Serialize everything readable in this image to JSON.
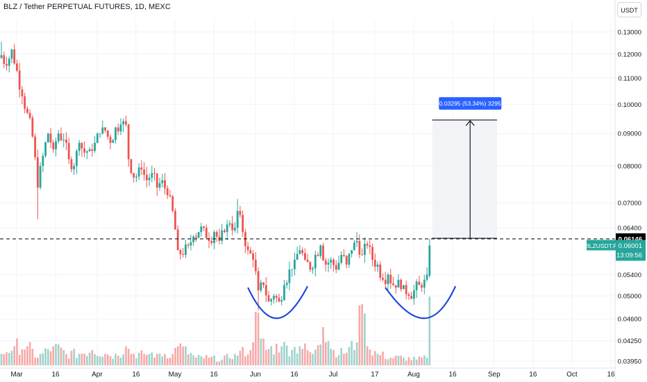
{
  "header": {
    "title": "BLZ / Tether PERPETUAL FUTURES, 1D, MEXC",
    "currency": "USDT"
  },
  "colors": {
    "up": "#26a69a",
    "down": "#ef5350",
    "vol_up": "#9fd3cc",
    "vol_down": "#f7a9a7",
    "drawing": "#1e48d8",
    "label_blue": "#2962ff",
    "grid": "#f0f3fa"
  },
  "chart_data": {
    "type": "candlestick",
    "symbol": "BLZUSDT.P",
    "y_axis": {
      "scale": "log",
      "range": [
        0.0385,
        0.136
      ],
      "ticks": [
        "0.13000",
        "0.12000",
        "0.11000",
        "0.10000",
        "0.09000",
        "0.08000",
        "0.07000",
        "0.06400",
        "0.05400",
        "0.05000",
        "0.04600",
        "0.04250",
        "0.03950"
      ]
    },
    "x_axis": {
      "ticks": [
        "Mar",
        "16",
        "Apr",
        "16",
        "May",
        "16",
        "Jun",
        "16",
        "Jul",
        "17",
        "Aug",
        "16",
        "Sep",
        "16",
        "Oct",
        "16"
      ],
      "start_date": "2024-03-01",
      "tick_days": [
        0,
        15,
        31,
        46,
        61,
        76,
        92,
        107,
        122,
        138,
        153,
        168,
        184,
        199,
        214,
        229
      ]
    },
    "ohlc_anchors": [
      {
        "day": 0,
        "close": 0.1195,
        "high": 0.1255
      },
      {
        "day": 2,
        "close": 0.115
      },
      {
        "day": 4,
        "close": 0.122
      },
      {
        "day": 6,
        "close": 0.113
      },
      {
        "day": 8,
        "close": 0.103
      },
      {
        "day": 10,
        "close": 0.097
      },
      {
        "day": 12,
        "close": 0.089
      },
      {
        "day": 14,
        "close": 0.074,
        "low": 0.066
      },
      {
        "day": 16,
        "close": 0.083
      },
      {
        "day": 18,
        "close": 0.09
      },
      {
        "day": 20,
        "close": 0.085
      },
      {
        "day": 22,
        "close": 0.09
      },
      {
        "day": 24,
        "close": 0.088
      },
      {
        "day": 26,
        "close": 0.082
      },
      {
        "day": 28,
        "close": 0.08
      },
      {
        "day": 30,
        "close": 0.087
      },
      {
        "day": 32,
        "close": 0.084
      },
      {
        "day": 34,
        "close": 0.085
      },
      {
        "day": 36,
        "close": 0.087
      },
      {
        "day": 38,
        "close": 0.09
      },
      {
        "day": 40,
        "close": 0.091
      },
      {
        "day": 42,
        "close": 0.087
      },
      {
        "day": 44,
        "close": 0.092
      },
      {
        "day": 46,
        "close": 0.093
      },
      {
        "day": 48,
        "close": 0.093,
        "high": 0.096
      },
      {
        "day": 49,
        "close": 0.082
      },
      {
        "day": 50,
        "close": 0.078
      },
      {
        "day": 52,
        "close": 0.077
      },
      {
        "day": 54,
        "close": 0.079
      },
      {
        "day": 56,
        "close": 0.076
      },
      {
        "day": 58,
        "close": 0.078
      },
      {
        "day": 60,
        "close": 0.074
      },
      {
        "day": 62,
        "close": 0.076
      },
      {
        "day": 64,
        "close": 0.072
      },
      {
        "day": 66,
        "close": 0.068
      },
      {
        "day": 68,
        "close": 0.059
      },
      {
        "day": 70,
        "close": 0.058
      },
      {
        "day": 72,
        "close": 0.06
      },
      {
        "day": 74,
        "close": 0.062
      },
      {
        "day": 76,
        "close": 0.063
      },
      {
        "day": 78,
        "close": 0.064
      },
      {
        "day": 80,
        "close": 0.061
      },
      {
        "day": 82,
        "close": 0.063
      },
      {
        "day": 84,
        "close": 0.061
      },
      {
        "day": 86,
        "close": 0.063
      },
      {
        "day": 88,
        "close": 0.065
      },
      {
        "day": 90,
        "close": 0.064
      },
      {
        "day": 91,
        "close": 0.068,
        "high": 0.071
      },
      {
        "day": 93,
        "close": 0.063
      },
      {
        "day": 95,
        "close": 0.059
      },
      {
        "day": 97,
        "close": 0.057
      },
      {
        "day": 99,
        "close": 0.051,
        "low": 0.0475
      },
      {
        "day": 101,
        "close": 0.052
      },
      {
        "day": 103,
        "close": 0.049
      },
      {
        "day": 105,
        "close": 0.05
      },
      {
        "day": 107,
        "close": 0.049
      },
      {
        "day": 109,
        "close": 0.052
      },
      {
        "day": 111,
        "close": 0.055
      },
      {
        "day": 113,
        "close": 0.057
      },
      {
        "day": 115,
        "close": 0.059
      },
      {
        "day": 117,
        "close": 0.057
      },
      {
        "day": 119,
        "close": 0.055
      },
      {
        "day": 121,
        "close": 0.058
      },
      {
        "day": 123,
        "close": 0.06
      },
      {
        "day": 125,
        "close": 0.056
      },
      {
        "day": 127,
        "close": 0.057
      },
      {
        "day": 129,
        "close": 0.055
      },
      {
        "day": 131,
        "close": 0.058
      },
      {
        "day": 133,
        "close": 0.056
      },
      {
        "day": 135,
        "close": 0.059
      },
      {
        "day": 137,
        "close": 0.061,
        "high": 0.063
      },
      {
        "day": 139,
        "close": 0.058
      },
      {
        "day": 141,
        "close": 0.06
      },
      {
        "day": 143,
        "close": 0.057
      },
      {
        "day": 145,
        "close": 0.056
      },
      {
        "day": 147,
        "close": 0.053
      },
      {
        "day": 149,
        "close": 0.054
      },
      {
        "day": 151,
        "close": 0.052
      },
      {
        "day": 153,
        "close": 0.053
      },
      {
        "day": 155,
        "close": 0.052
      },
      {
        "day": 157,
        "close": 0.05
      },
      {
        "day": 159,
        "close": 0.051
      },
      {
        "day": 161,
        "close": 0.052
      },
      {
        "day": 163,
        "close": 0.053
      },
      {
        "day": 164,
        "close": 0.054
      },
      {
        "day": 165,
        "close": 0.06,
        "high": 0.0615
      }
    ],
    "volume_anchors": [
      {
        "day": 0,
        "v": 3
      },
      {
        "day": 5,
        "v": 5
      },
      {
        "day": 10,
        "v": 5
      },
      {
        "day": 14,
        "v": 2
      },
      {
        "day": 20,
        "v": 5
      },
      {
        "day": 25,
        "v": 3
      },
      {
        "day": 30,
        "v": 3
      },
      {
        "day": 35,
        "v": 4
      },
      {
        "day": 40,
        "v": 3
      },
      {
        "day": 45,
        "v": 2.5
      },
      {
        "day": 48,
        "v": 5
      },
      {
        "day": 50,
        "v": 3
      },
      {
        "day": 55,
        "v": 3
      },
      {
        "day": 60,
        "v": 3
      },
      {
        "day": 66,
        "v": 3
      },
      {
        "day": 68,
        "v": 5
      },
      {
        "day": 75,
        "v": 2
      },
      {
        "day": 80,
        "v": 2
      },
      {
        "day": 85,
        "v": 1.5
      },
      {
        "day": 90,
        "v": 3
      },
      {
        "day": 96,
        "v": 4
      },
      {
        "day": 98,
        "v": 14
      },
      {
        "day": 100,
        "v": 7
      },
      {
        "day": 102,
        "v": 4
      },
      {
        "day": 108,
        "v": 5
      },
      {
        "day": 112,
        "v": 4
      },
      {
        "day": 115,
        "v": 5
      },
      {
        "day": 120,
        "v": 3
      },
      {
        "day": 124,
        "v": 10
      },
      {
        "day": 128,
        "v": 4
      },
      {
        "day": 132,
        "v": 3
      },
      {
        "day": 137,
        "v": 6
      },
      {
        "day": 139,
        "v": 16
      },
      {
        "day": 141,
        "v": 5
      },
      {
        "day": 145,
        "v": 3
      },
      {
        "day": 150,
        "v": 2
      },
      {
        "day": 155,
        "v": 2
      },
      {
        "day": 160,
        "v": 1.5
      },
      {
        "day": 164,
        "v": 2
      },
      {
        "day": 165,
        "v": 18
      }
    ],
    "annotations": {
      "resistance_price": 0.06146,
      "resistance_label": "0.06146",
      "last_price_label": "0.06001",
      "countdown": "13:09:56",
      "measure_label": "0.03295 (53.34%) 3295",
      "measure_from": 0.0616,
      "measure_to": 0.0945,
      "measure_day_start": 166,
      "measure_day_end": 191,
      "curve1_days": [
        95,
        103,
        110,
        118
      ],
      "curve2_days": [
        148,
        160,
        168,
        175
      ]
    }
  }
}
